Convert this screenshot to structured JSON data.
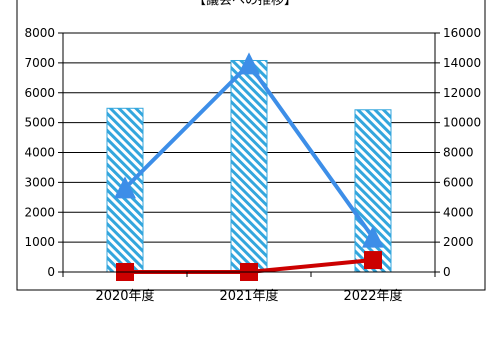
{
  "chart_data": {
    "type": "bar",
    "title": "【議会への推移】",
    "categories": [
      "2020年度",
      "2021年度",
      "2022年度"
    ],
    "bar_series": {
      "values": [
        5480,
        7080,
        5430
      ],
      "axis": "left",
      "color": "#33a6dd"
    },
    "line_series": [
      {
        "values": [
          5600,
          13900,
          2300
        ],
        "axis": "right",
        "marker": "triangle",
        "color": "#3d8ee8"
      },
      {
        "values": [
          0,
          0,
          800
        ],
        "axis": "right",
        "marker": "square",
        "color": "#cc0000"
      }
    ],
    "y_left": {
      "min": 0,
      "max": 8000,
      "step": 1000,
      "ticks": [
        "0",
        "1000",
        "2000",
        "3000",
        "4000",
        "5000",
        "6000",
        "7000",
        "8000"
      ]
    },
    "y_right": {
      "min": 0,
      "max": 16000,
      "step": 2000,
      "ticks": [
        "0",
        "2000",
        "4000",
        "6000",
        "8000",
        "10000",
        "12000",
        "14000",
        "16000"
      ]
    },
    "grid": true,
    "legend": "none"
  }
}
